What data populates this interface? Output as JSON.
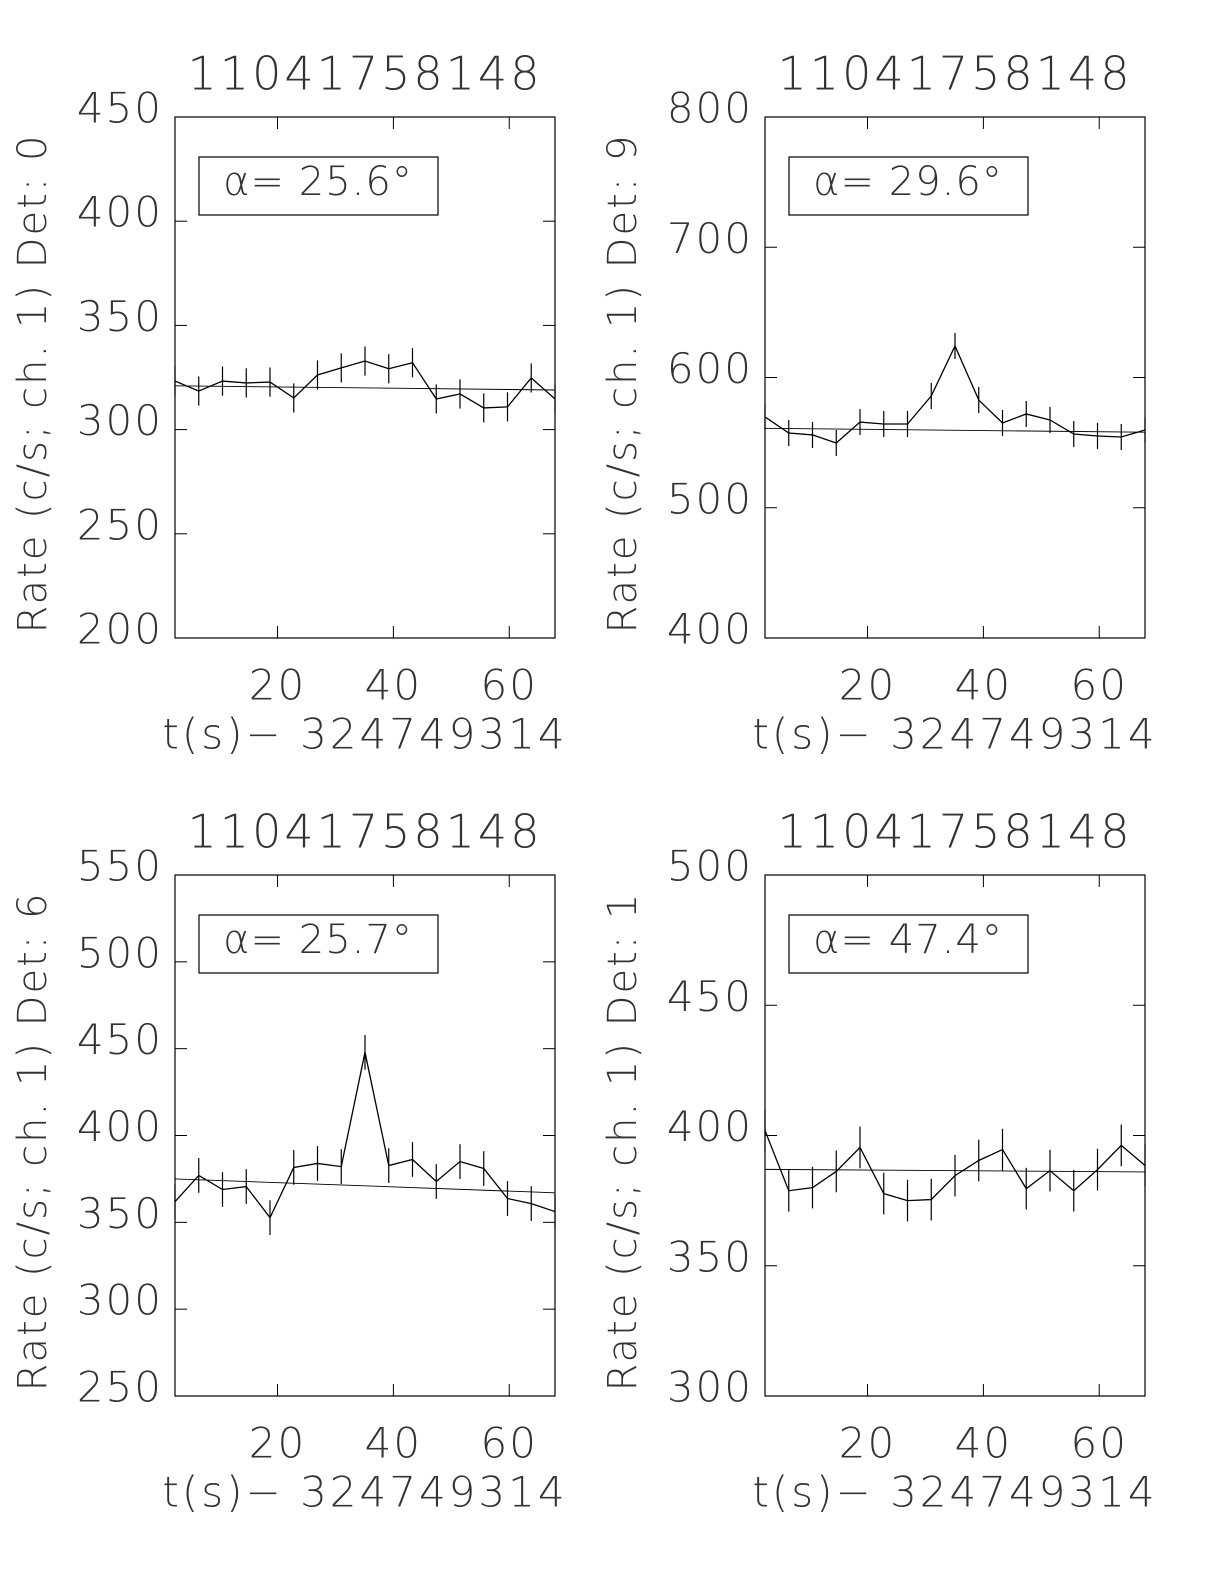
{
  "chart_data": [
    {
      "type": "line",
      "title": "11041758148",
      "xlabel": "t(s)− 324749314",
      "ylabel": "Rate (c/s; ch. 1) Det: 0",
      "annotation": "α= 25.6°",
      "x": [
        2.3,
        6.4,
        10.5,
        14.6,
        18.7,
        22.8,
        26.9,
        31.0,
        35.1,
        39.2,
        43.3,
        47.4,
        51.5,
        55.6,
        59.7,
        63.8,
        67.9
      ],
      "series": [
        {
          "color": "#000000",
          "values": [
            323.3,
            318.5,
            323.3,
            322.4,
            322.8,
            315.2,
            326.2,
            329.6,
            332.9,
            329.2,
            332.1,
            314.7,
            317.1,
            310.4,
            310.9,
            324.8,
            314.7
          ],
          "errors": [
            7,
            7,
            7,
            7,
            7,
            7,
            7,
            7,
            7,
            7,
            7,
            7,
            7,
            7,
            7,
            7,
            7
          ]
        }
      ],
      "fit": {
        "x": [
          2.3,
          67.9
        ],
        "values": [
          321,
          319
        ],
        "color": "#000000"
      },
      "xlim": [
        2.3,
        67.9
      ],
      "xticks": [
        20,
        40,
        60
      ],
      "ylim": [
        200,
        450
      ],
      "yticks": [
        200,
        250,
        300,
        350,
        400,
        450
      ]
    },
    {
      "type": "line",
      "title": "11041758148",
      "xlabel": "t(s)− 324749314",
      "ylabel": "Rate (c/s; ch. 1) Det: 9",
      "annotation": "α= 29.6°",
      "x": [
        2.3,
        6.4,
        10.5,
        14.6,
        18.7,
        22.8,
        26.9,
        31.0,
        35.1,
        39.2,
        43.3,
        47.4,
        51.5,
        55.6,
        59.7,
        63.8,
        67.9
      ],
      "series": [
        {
          "color": "#000000",
          "values": [
            569.7,
            557.4,
            555.9,
            549.7,
            565.8,
            564.3,
            564.3,
            585.8,
            624.2,
            582.7,
            565.1,
            572.0,
            567.4,
            556.6,
            555.1,
            554.3,
            559.7
          ],
          "errors": [
            10,
            10,
            10,
            10,
            10,
            10,
            10,
            10,
            10,
            10,
            10,
            10,
            10,
            10,
            10,
            10,
            10
          ]
        }
      ],
      "fit": {
        "x": [
          2.3,
          67.9
        ],
        "values": [
          561,
          558
        ],
        "color": "#000000"
      },
      "xlim": [
        2.3,
        67.9
      ],
      "xticks": [
        20,
        40,
        60
      ],
      "ylim": [
        400,
        800
      ],
      "yticks": [
        400,
        500,
        600,
        700,
        800
      ]
    },
    {
      "type": "line",
      "title": "11041758148",
      "xlabel": "t(s)− 324749314",
      "ylabel": "Rate (c/s; ch. 1) Det: 6",
      "annotation": "α= 25.7°",
      "x": [
        2.3,
        6.4,
        10.5,
        14.6,
        18.7,
        22.8,
        26.9,
        31.0,
        35.1,
        39.2,
        43.3,
        47.4,
        51.5,
        55.6,
        59.7,
        63.8,
        67.9
      ],
      "series": [
        {
          "color": "#000000",
          "values": [
            361.9,
            377.0,
            368.9,
            370.6,
            352.7,
            381.6,
            383.9,
            382.1,
            447.9,
            382.7,
            386.2,
            373.5,
            385.0,
            381.0,
            363.7,
            360.8,
            356.2
          ],
          "errors": [
            10,
            10,
            10,
            10,
            10,
            10,
            10,
            10,
            10,
            10,
            10,
            10,
            10,
            10,
            10,
            10,
            10
          ]
        }
      ],
      "fit": {
        "x": [
          2.3,
          67.9
        ],
        "values": [
          375,
          367
        ],
        "color": "#000000"
      },
      "xlim": [
        2.3,
        67.9
      ],
      "xticks": [
        20,
        40,
        60
      ],
      "ylim": [
        250,
        550
      ],
      "yticks": [
        250,
        300,
        350,
        400,
        450,
        500,
        550
      ]
    },
    {
      "type": "line",
      "title": "11041758148",
      "xlabel": "t(s)− 324749314",
      "ylabel": "Rate (c/s; ch. 1) Det: 1",
      "annotation": "α= 47.4°",
      "x": [
        2.3,
        6.4,
        10.5,
        14.6,
        18.7,
        22.8,
        26.9,
        31.0,
        35.1,
        39.2,
        43.3,
        47.4,
        51.5,
        55.6,
        59.7,
        63.8,
        67.9
      ],
      "series": [
        {
          "color": "#000000",
          "values": [
            401.9,
            378.8,
            380.0,
            386.2,
            395.4,
            377.7,
            375.0,
            375.4,
            384.6,
            390.4,
            394.6,
            379.6,
            386.5,
            378.8,
            386.9,
            396.2,
            388.5
          ],
          "errors": [
            8,
            8,
            8,
            8,
            8,
            8,
            8,
            8,
            8,
            8,
            8,
            8,
            8,
            8,
            8,
            8,
            8
          ]
        }
      ],
      "fit": {
        "x": [
          2.3,
          67.9
        ],
        "values": [
          387,
          386
        ],
        "color": "#000000"
      },
      "xlim": [
        2.3,
        67.9
      ],
      "xticks": [
        20,
        40,
        60
      ],
      "ylim": [
        300,
        500
      ],
      "yticks": [
        300,
        350,
        400,
        450,
        500
      ]
    }
  ]
}
